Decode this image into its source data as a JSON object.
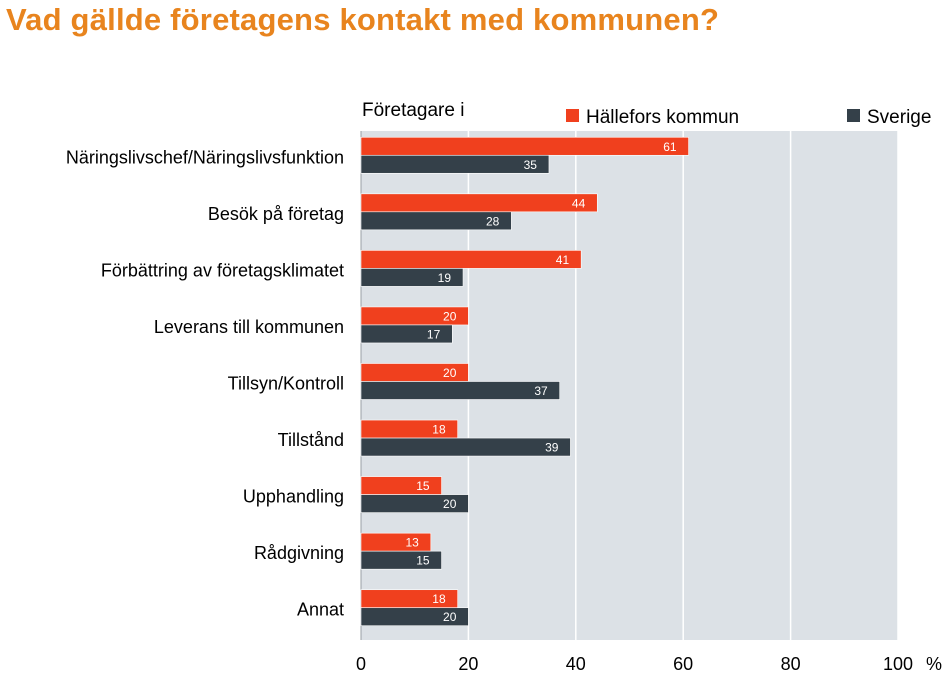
{
  "title": "Vad gällde företagens kontakt med kommunen?",
  "colors": {
    "title": "#e8841e",
    "series1": "#f0401e",
    "series2": "#344049",
    "plot_bg": "#dce1e6"
  },
  "chart_data": {
    "type": "bar",
    "orientation": "horizontal",
    "legend_title": "Företagare i",
    "categories": [
      "Näringslivschef/Näringslivsfunktion",
      "Besök på företag",
      "Förbättring av företagsklimatet",
      "Leverans till kommunen",
      "Tillsyn/Kontroll",
      "Tillstånd",
      "Upphandling",
      "Rådgivning",
      "Annat"
    ],
    "series": [
      {
        "name": "Hällefors kommun",
        "color": "#f0401e",
        "values": [
          61,
          44,
          41,
          20,
          20,
          18,
          15,
          13,
          18
        ]
      },
      {
        "name": "Sverige",
        "color": "#344049",
        "values": [
          35,
          28,
          19,
          17,
          37,
          39,
          20,
          15,
          20
        ]
      }
    ],
    "xlim": [
      0,
      100
    ],
    "xticks": [
      "0",
      "20",
      "40",
      "60",
      "80",
      "100"
    ],
    "unit": "%",
    "grid": true,
    "legend_position": "top"
  }
}
